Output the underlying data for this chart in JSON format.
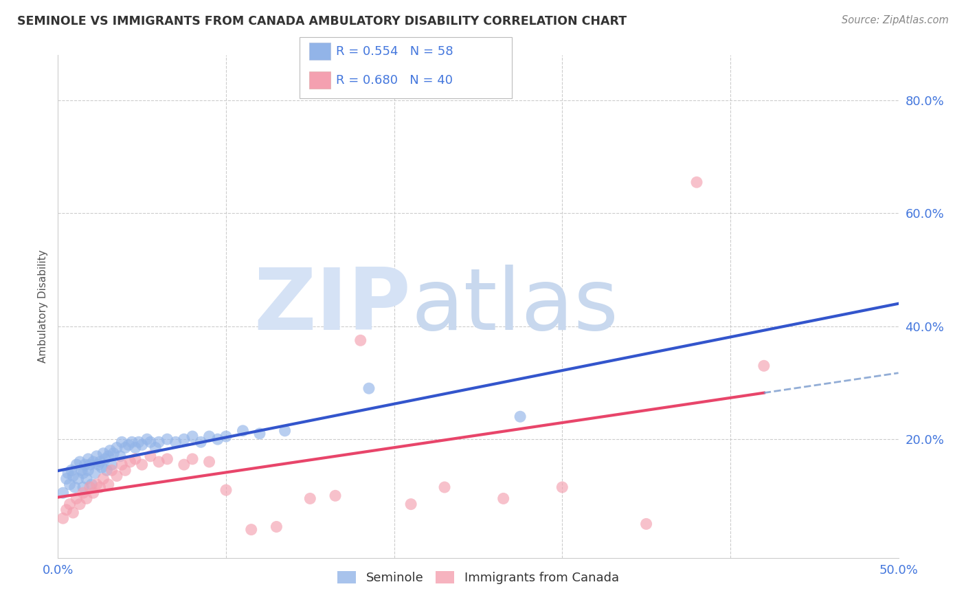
{
  "title": "SEMINOLE VS IMMIGRANTS FROM CANADA AMBULATORY DISABILITY CORRELATION CHART",
  "source": "Source: ZipAtlas.com",
  "ylabel": "Ambulatory Disability",
  "xlim": [
    0.0,
    0.5
  ],
  "ylim": [
    -0.01,
    0.88
  ],
  "xticks": [
    0.0,
    0.1,
    0.2,
    0.3,
    0.4,
    0.5
  ],
  "xticklabels": [
    "0.0%",
    "",
    "",
    "",
    "",
    "50.0%"
  ],
  "ytick_positions": [
    0.0,
    0.2,
    0.4,
    0.6,
    0.8
  ],
  "ytick_labels": [
    "",
    "20.0%",
    "40.0%",
    "60.0%",
    "80.0%"
  ],
  "blue_color": "#92B4E8",
  "pink_color": "#F4A0B0",
  "blue_line_color": "#3355CC",
  "pink_line_color": "#E8456A",
  "dash_line_color": "#7799CC",
  "seminole_x": [
    0.003,
    0.005,
    0.006,
    0.007,
    0.008,
    0.009,
    0.01,
    0.011,
    0.012,
    0.013,
    0.014,
    0.015,
    0.015,
    0.016,
    0.017,
    0.018,
    0.018,
    0.019,
    0.02,
    0.021,
    0.022,
    0.023,
    0.024,
    0.025,
    0.026,
    0.027,
    0.028,
    0.029,
    0.03,
    0.031,
    0.032,
    0.033,
    0.035,
    0.037,
    0.038,
    0.04,
    0.042,
    0.044,
    0.046,
    0.048,
    0.05,
    0.053,
    0.055,
    0.058,
    0.06,
    0.065,
    0.07,
    0.075,
    0.08,
    0.085,
    0.09,
    0.095,
    0.1,
    0.11,
    0.12,
    0.135,
    0.185,
    0.275
  ],
  "seminole_y": [
    0.105,
    0.13,
    0.14,
    0.12,
    0.145,
    0.135,
    0.115,
    0.155,
    0.13,
    0.16,
    0.145,
    0.115,
    0.14,
    0.155,
    0.13,
    0.145,
    0.165,
    0.155,
    0.12,
    0.16,
    0.14,
    0.17,
    0.155,
    0.16,
    0.15,
    0.175,
    0.165,
    0.145,
    0.17,
    0.18,
    0.155,
    0.175,
    0.185,
    0.17,
    0.195,
    0.185,
    0.19,
    0.195,
    0.185,
    0.195,
    0.19,
    0.2,
    0.195,
    0.185,
    0.195,
    0.2,
    0.195,
    0.2,
    0.205,
    0.195,
    0.205,
    0.2,
    0.205,
    0.215,
    0.21,
    0.215,
    0.29,
    0.24
  ],
  "canada_x": [
    0.003,
    0.005,
    0.007,
    0.009,
    0.011,
    0.013,
    0.015,
    0.017,
    0.019,
    0.021,
    0.023,
    0.025,
    0.027,
    0.03,
    0.032,
    0.035,
    0.038,
    0.04,
    0.043,
    0.046,
    0.05,
    0.055,
    0.06,
    0.065,
    0.075,
    0.08,
    0.09,
    0.1,
    0.115,
    0.13,
    0.15,
    0.165,
    0.18,
    0.21,
    0.23,
    0.265,
    0.3,
    0.35,
    0.38,
    0.42
  ],
  "canada_y": [
    0.06,
    0.075,
    0.085,
    0.07,
    0.095,
    0.085,
    0.105,
    0.095,
    0.115,
    0.105,
    0.12,
    0.115,
    0.13,
    0.12,
    0.145,
    0.135,
    0.155,
    0.145,
    0.16,
    0.165,
    0.155,
    0.17,
    0.16,
    0.165,
    0.155,
    0.165,
    0.16,
    0.11,
    0.04,
    0.045,
    0.095,
    0.1,
    0.375,
    0.085,
    0.115,
    0.095,
    0.115,
    0.05,
    0.655,
    0.33
  ]
}
